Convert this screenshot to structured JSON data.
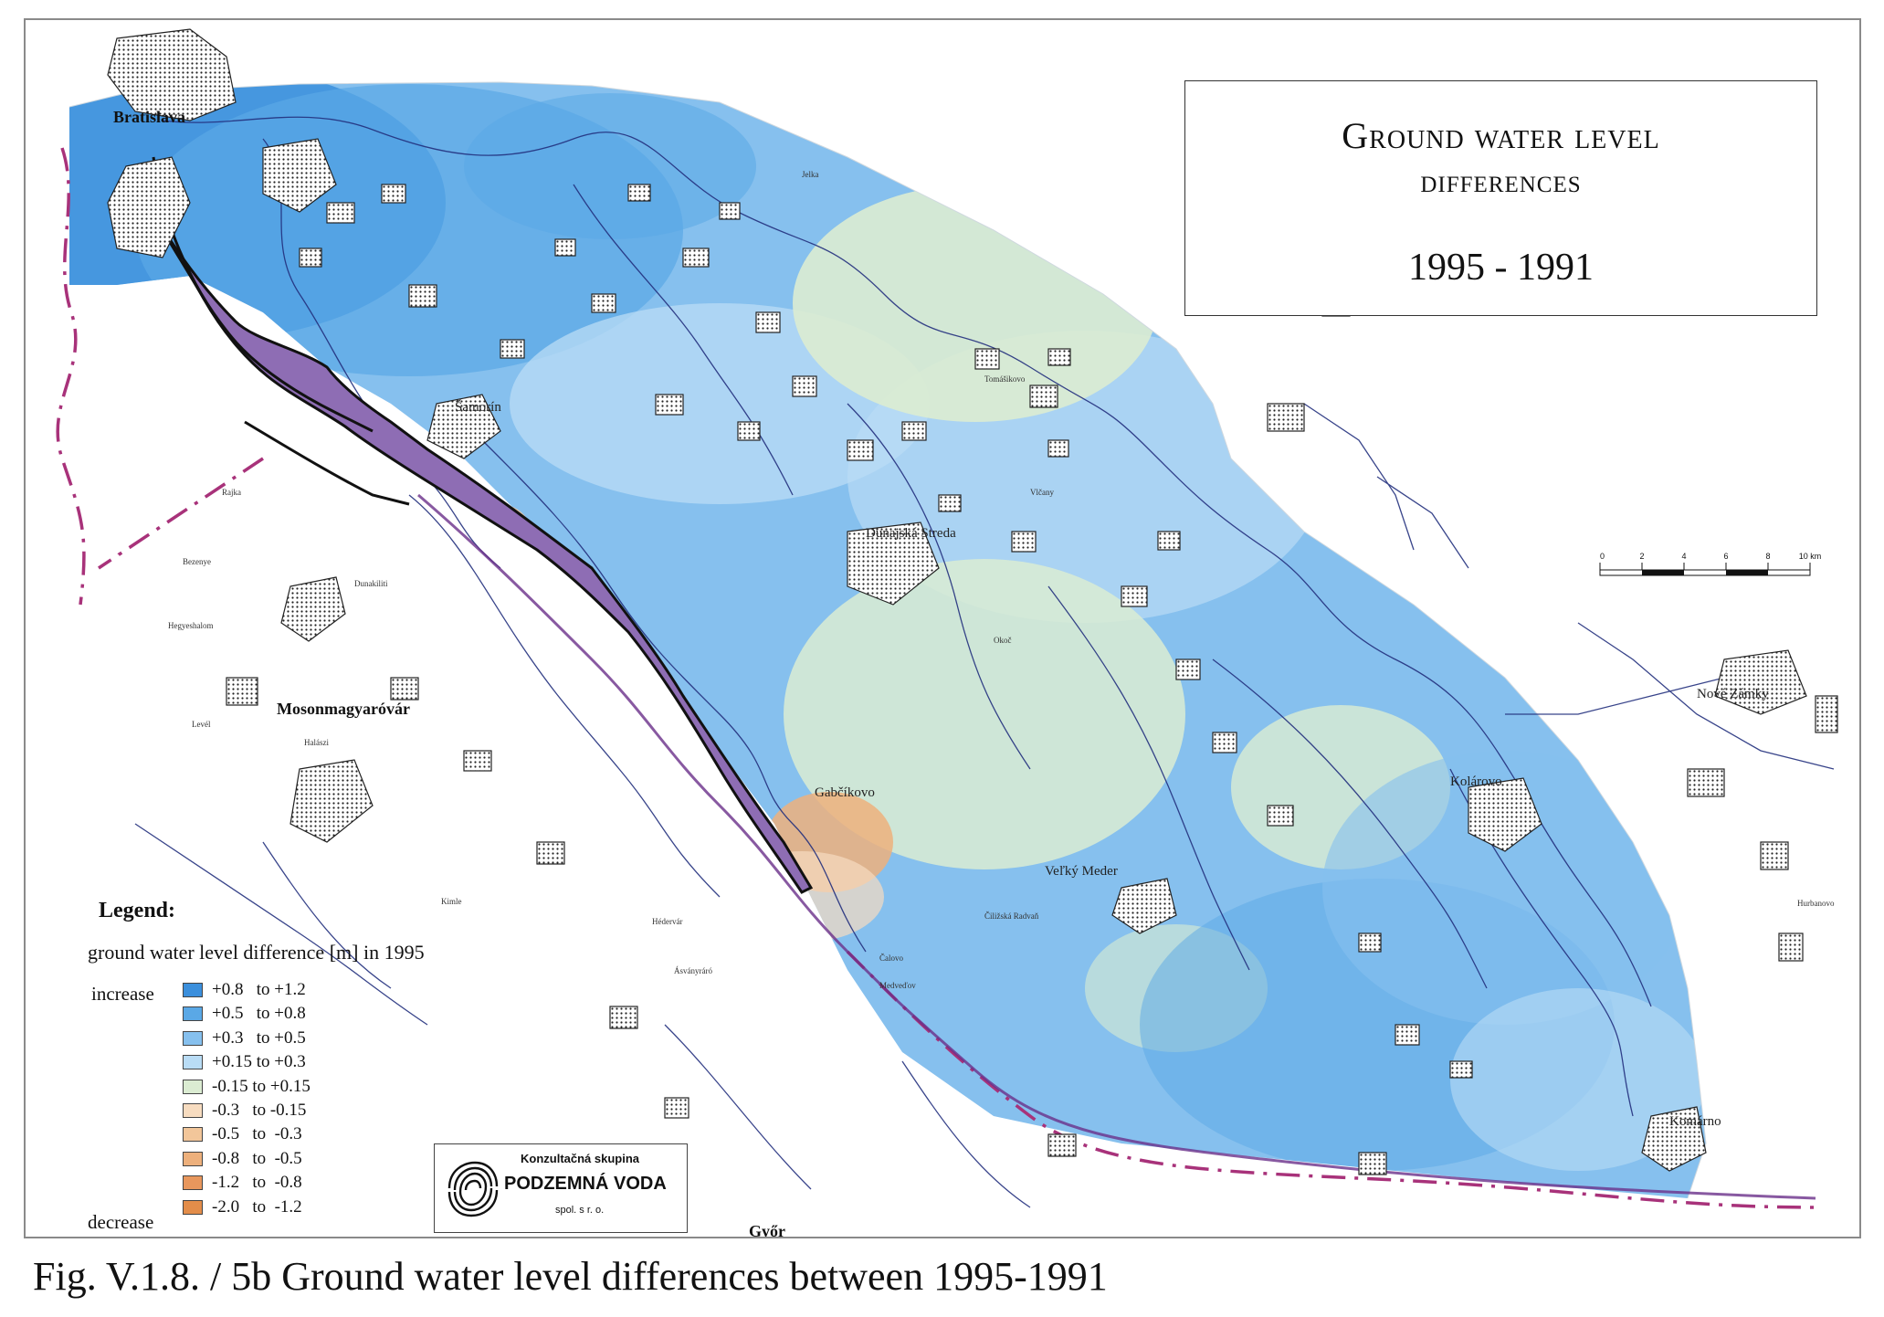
{
  "title": {
    "line1": "Ground water level",
    "line2": "differences",
    "years": "1995 - 1991"
  },
  "legend": {
    "title": "Legend:",
    "subtitle": "ground water level difference [m] in 1995",
    "increase_label": "increase",
    "decrease_label": "decrease",
    "classes": [
      {
        "label": "+0.8   to +1.2",
        "color": "#3b8fdc"
      },
      {
        "label": "+0.5   to +0.8",
        "color": "#5aa8e6"
      },
      {
        "label": "+0.3   to +0.5",
        "color": "#86c0ee"
      },
      {
        "label": "+0.15 to +0.3",
        "color": "#b9dcf5"
      },
      {
        "label": "-0.15 to +0.15",
        "color": "#dbecd2"
      },
      {
        "label": "-0.3   to -0.15",
        "color": "#f7dcc0"
      },
      {
        "label": "-0.5   to  -0.3",
        "color": "#f2c69a"
      },
      {
        "label": "-0.8   to  -0.5",
        "color": "#edb07c"
      },
      {
        "label": "-1.2   to  -0.8",
        "color": "#e8975d"
      },
      {
        "label": "-2.0   to  -1.2",
        "color": "#e38d4a"
      }
    ]
  },
  "logo": {
    "top": "Konzultačná skupina",
    "name": "PODZEMNÁ VODA",
    "sub": "spol. s r. o."
  },
  "scale": {
    "ticks": [
      "0",
      "2",
      "4",
      "6",
      "8",
      "10 km"
    ]
  },
  "places": {
    "bratislava": "Bratislava",
    "samorin": "Šamorín",
    "dunajska_streda": "Dunajská Streda",
    "gabcikovo": "Gabčíkovo",
    "velky_meder": "Veľký Meder",
    "kolarovo": "Kolárovo",
    "komarno": "Komárno",
    "nove_zamky": "Nové Zámky",
    "mosonmagyarovar": "Mosonmagyaróvár",
    "gyor": "Győr",
    "rajka": "Rajka",
    "dunakiliti": "Dunakiliti",
    "hegyeshalom": "Hegyeshalom",
    "bezenye": "Bezenye",
    "levél": "Levél",
    "halaszi": "Halászi",
    "asvanyraro": "Ásványráró",
    "kimle": "Kimle",
    "hedervar": "Hédervár",
    "okany": "Okoč",
    "calovo": "Čalovo",
    "medvedov": "Medveďov",
    "ciz": "Čiližská Radvaň",
    "hurbanovo": "Hurbanovo",
    "jelka": "Jelka",
    "tomasikovo": "Tomášikovo",
    "vlcany": "Vlčany"
  },
  "caption": "Fig. V.1.8. / 5b  Ground water level differences between 1995-1991"
}
